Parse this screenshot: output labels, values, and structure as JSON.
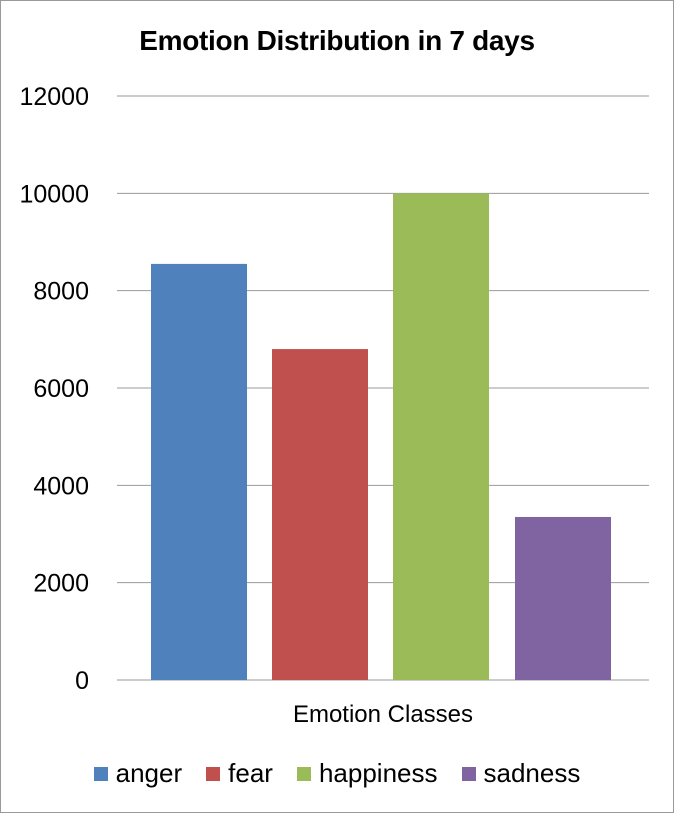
{
  "chart_data": {
    "type": "bar",
    "title": "Emotion Distribution in 7 days",
    "xlabel": "Emotion Classes",
    "ylabel": "",
    "ylim": [
      0,
      12000
    ],
    "yticks": [
      "0",
      "2000",
      "4000",
      "6000",
      "8000",
      "10000",
      "12000"
    ],
    "grid": true,
    "legend_position": "bottom",
    "series": [
      {
        "name": "anger",
        "values": [
          8550
        ],
        "color": "#4f81bd"
      },
      {
        "name": "fear",
        "values": [
          6800
        ],
        "color": "#c0504d"
      },
      {
        "name": "happiness",
        "values": [
          10000
        ],
        "color": "#9bbb59"
      },
      {
        "name": "sadness",
        "values": [
          3350
        ],
        "color": "#8064a2"
      }
    ]
  }
}
